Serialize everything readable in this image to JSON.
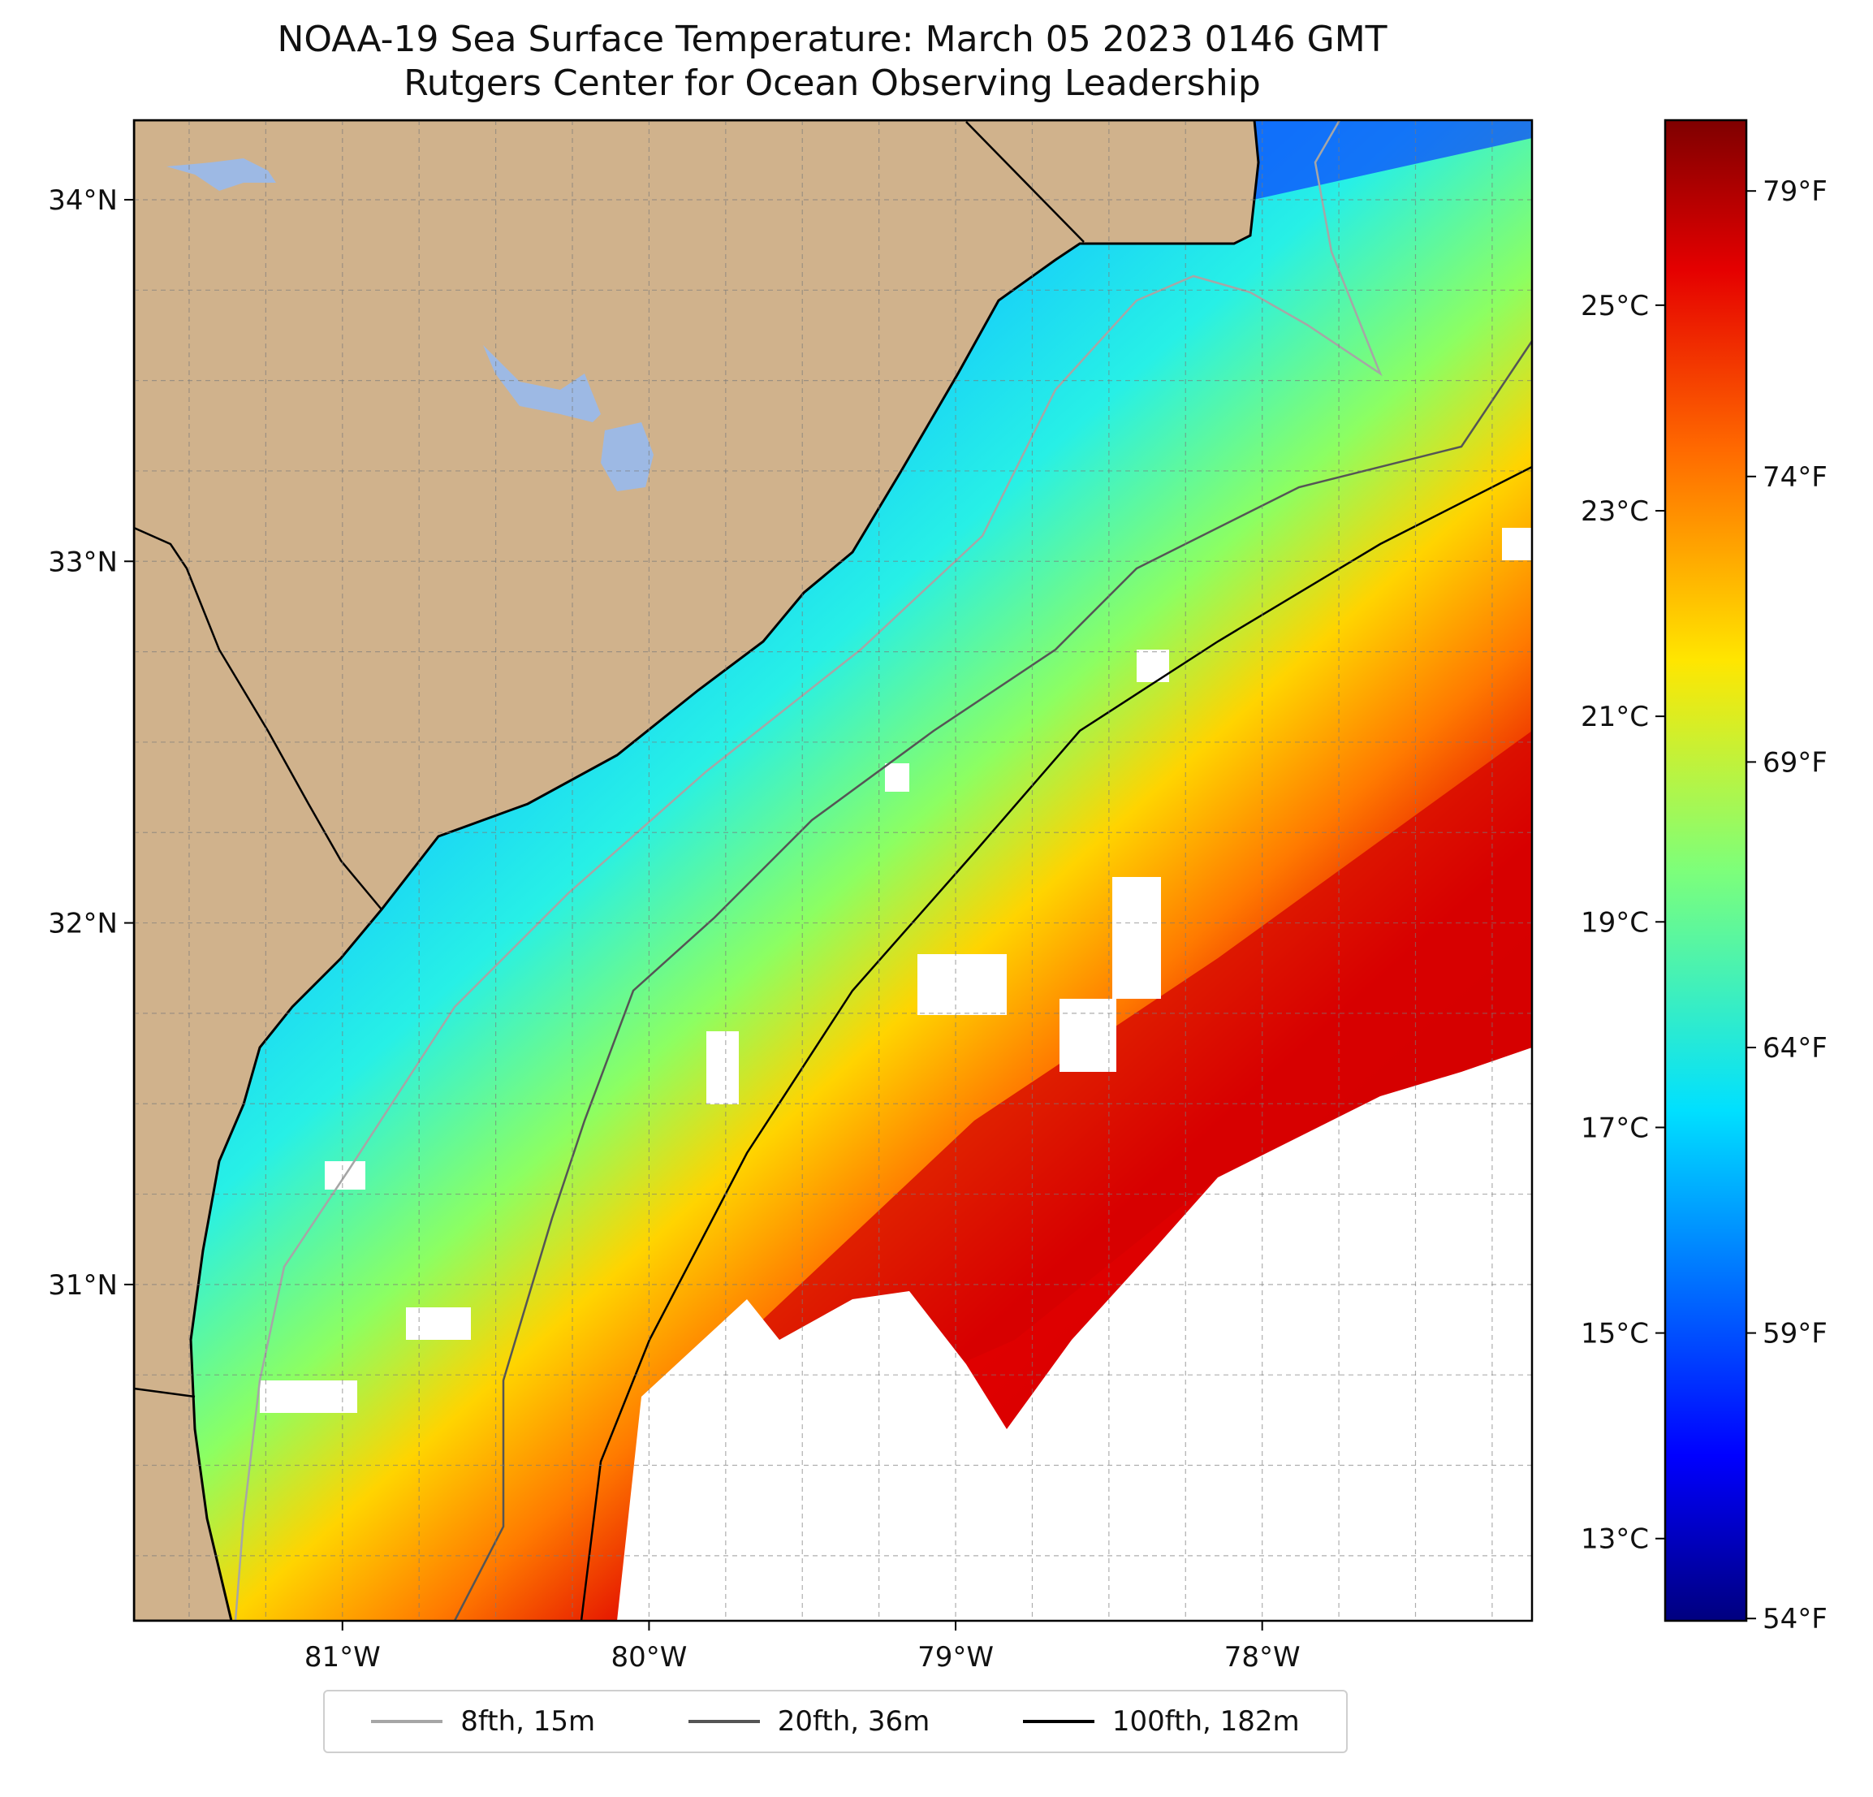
{
  "title": {
    "line1": "NOAA-19 Sea Surface Temperature: March 05 2023 0146 GMT",
    "line2": "Rutgers Center for Ocean Observing Leadership"
  },
  "map": {
    "lon_range": [
      -81.68,
      -77.12
    ],
    "lat_range": [
      30.07,
      34.22
    ],
    "lon_ticks": [
      {
        "value": -81,
        "label": "81°W"
      },
      {
        "value": -80,
        "label": "80°W"
      },
      {
        "value": -79,
        "label": "79°W"
      },
      {
        "value": -78,
        "label": "78°W"
      }
    ],
    "lat_ticks": [
      {
        "value": 31,
        "label": "31°N"
      },
      {
        "value": 32,
        "label": "32°N"
      },
      {
        "value": 33,
        "label": "33°N"
      },
      {
        "value": 34,
        "label": "34°N"
      }
    ],
    "gridlines": true,
    "land_color": "#d0b28c",
    "lake_color": "#9db9e4",
    "missing_data_color": "#ffffff"
  },
  "colorbar": {
    "celsius_range": [
      12.2,
      26.8
    ],
    "celsius_ticks": [
      {
        "value": 13,
        "label": "13°C"
      },
      {
        "value": 15,
        "label": "15°C"
      },
      {
        "value": 17,
        "label": "17°C"
      },
      {
        "value": 19,
        "label": "19°C"
      },
      {
        "value": 21,
        "label": "21°C"
      },
      {
        "value": 23,
        "label": "23°C"
      },
      {
        "value": 25,
        "label": "25°C"
      }
    ],
    "fahrenheit_ticks": [
      {
        "value": 54,
        "label": "54°F"
      },
      {
        "value": 59,
        "label": "59°F"
      },
      {
        "value": 64,
        "label": "64°F"
      },
      {
        "value": 69,
        "label": "69°F"
      },
      {
        "value": 74,
        "label": "74°F"
      },
      {
        "value": 79,
        "label": "79°F"
      }
    ],
    "colormap": "jet"
  },
  "legend": {
    "items": [
      {
        "label": "8fth, 15m",
        "color": "#a6a6a6"
      },
      {
        "label": "20fth, 36m",
        "color": "#555555"
      },
      {
        "label": "100fth, 182m",
        "color": "#000000"
      }
    ]
  }
}
